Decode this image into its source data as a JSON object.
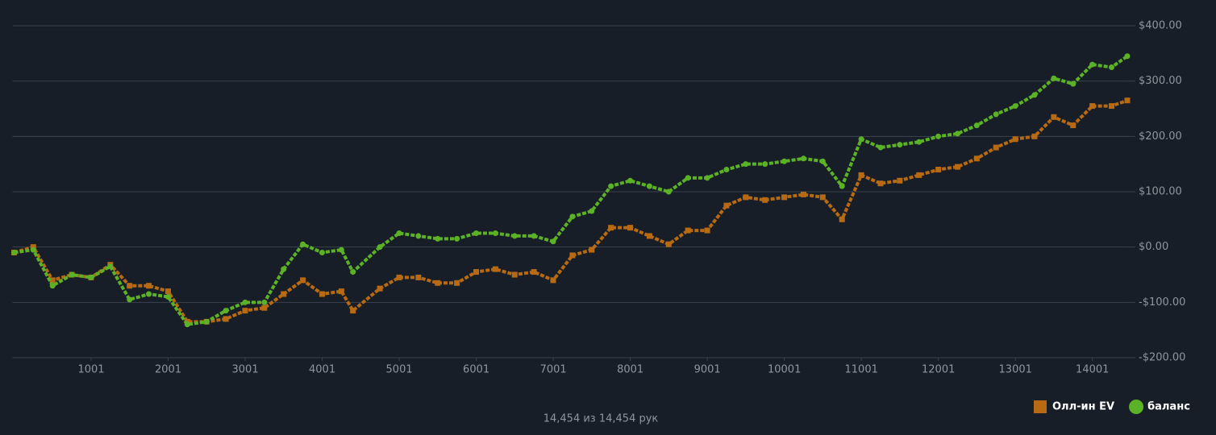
{
  "chart_data": {
    "type": "line",
    "x": [
      1,
      250,
      500,
      750,
      1000,
      1250,
      1500,
      1750,
      2000,
      2250,
      2500,
      2750,
      3000,
      3250,
      3500,
      3750,
      4000,
      4250,
      4400,
      4750,
      5000,
      5250,
      5500,
      5750,
      6000,
      6250,
      6500,
      6750,
      7000,
      7250,
      7500,
      7750,
      8000,
      8250,
      8500,
      8750,
      9000,
      9250,
      9500,
      9750,
      10000,
      10250,
      10500,
      10750,
      11000,
      11250,
      11500,
      11750,
      12000,
      12250,
      12500,
      12750,
      13000,
      13250,
      13500,
      13750,
      14000,
      14250,
      14454
    ],
    "series": [
      {
        "name": "Олл-ин EV",
        "color": "#b86a12",
        "marker": "square",
        "values": [
          -10,
          0,
          -60,
          -50,
          -55,
          -32,
          -70,
          -70,
          -80,
          -135,
          -135,
          -130,
          -115,
          -110,
          -85,
          -60,
          -85,
          -80,
          -115,
          -75,
          -55,
          -55,
          -65,
          -65,
          -45,
          -40,
          -50,
          -45,
          -60,
          -15,
          -5,
          35,
          35,
          20,
          5,
          30,
          30,
          75,
          90,
          85,
          90,
          95,
          90,
          50,
          130,
          115,
          120,
          130,
          140,
          145,
          160,
          180,
          195,
          200,
          235,
          220,
          255,
          255,
          265
        ]
      },
      {
        "name": "баланс",
        "color": "#5cb226",
        "marker": "circle",
        "values": [
          -10,
          -5,
          -70,
          -50,
          -55,
          -35,
          -95,
          -85,
          -90,
          -140,
          -135,
          -115,
          -100,
          -100,
          -40,
          5,
          -10,
          -5,
          -45,
          0,
          25,
          20,
          15,
          15,
          25,
          25,
          20,
          20,
          10,
          55,
          65,
          110,
          120,
          110,
          100,
          125,
          125,
          140,
          150,
          150,
          155,
          160,
          155,
          110,
          195,
          180,
          185,
          190,
          200,
          205,
          220,
          240,
          255,
          275,
          305,
          295,
          330,
          325,
          345
        ]
      }
    ],
    "xlim": [
      1,
      14454
    ],
    "xticks": [
      1001,
      2001,
      3001,
      4001,
      5001,
      6001,
      7001,
      8001,
      9001,
      10001,
      11001,
      12001,
      13001,
      14001
    ],
    "ylim": [
      -200,
      400
    ],
    "yticks": [
      {
        "value": -200,
        "label": "-$200.00"
      },
      {
        "value": -100,
        "label": "-$100.00"
      },
      {
        "value": 0,
        "label": "$0.00"
      },
      {
        "value": 100,
        "label": "$100.00"
      },
      {
        "value": 200,
        "label": "$200.00"
      },
      {
        "value": 300,
        "label": "$300.00"
      },
      {
        "value": 400,
        "label": "$400.00"
      }
    ],
    "grid": true,
    "footer": "14,454 из 14,454 рук",
    "legend": "bottom-right"
  }
}
